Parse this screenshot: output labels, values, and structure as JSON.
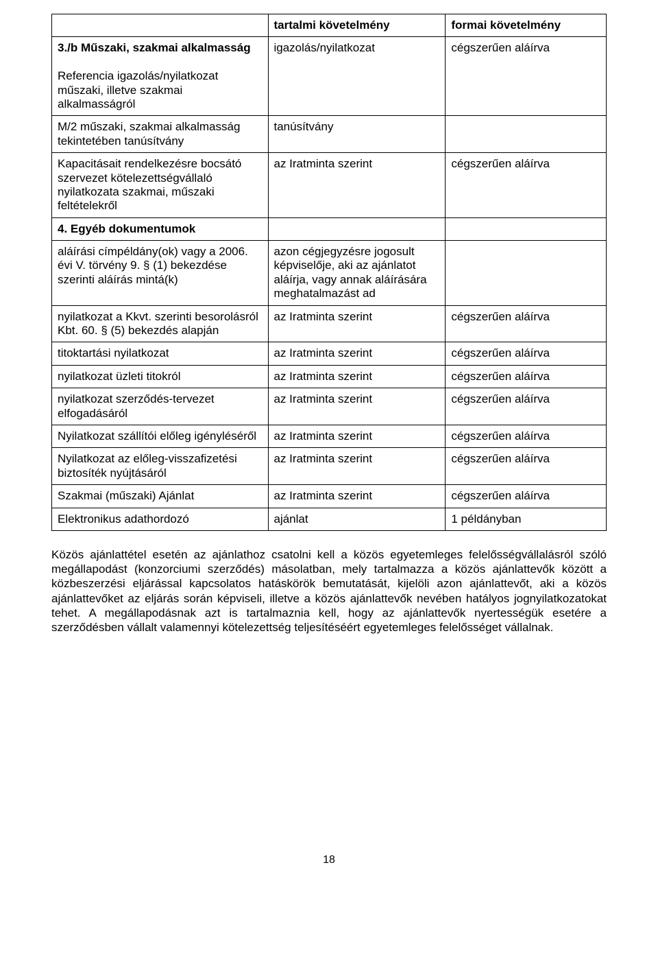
{
  "table": {
    "header": {
      "c1": "",
      "c2": "tartalmi követelmény",
      "c3": "formai követelmény"
    },
    "rows": [
      {
        "c1_bold": "3./b Műszaki, szakmai alkalmasság",
        "c1_rest": "Referencia igazolás/nyilatkozat műszaki, illetve szakmai alkalmasságról",
        "c2": "igazolás/nyilatkozat",
        "c3": "cégszerűen aláírva"
      },
      {
        "c1": "M/2 műszaki, szakmai alkalmasság tekintetében tanúsítvány",
        "c2": "tanúsítvány",
        "c3": ""
      },
      {
        "c1": "Kapacitásait rendelkezésre bocsátó szervezet kötelezettségvállaló nyilatkozata szakmai, műszaki feltételekről",
        "c2": "az Iratminta szerint",
        "c3": "cégszerűen aláírva"
      },
      {
        "c1_bold": "4. Egyéb dokumentumok",
        "c2": "",
        "c3": ""
      },
      {
        "c1": "aláírási címpéldány(ok) vagy a 2006. évi V. törvény 9. § (1) bekezdése szerinti aláírás mintá(k)",
        "c2": "azon cégjegyzésre jogosult képviselője, aki az ajánlatot aláírja, vagy annak aláírására meghatalmazást ad",
        "c3": ""
      },
      {
        "c1": "nyilatkozat a Kkvt. szerinti besorolásról Kbt. 60. § (5) bekezdés alapján",
        "c2": "az Iratminta szerint",
        "c3": "cégszerűen aláírva"
      },
      {
        "c1": "titoktartási nyilatkozat",
        "c2": "az Iratminta szerint",
        "c3": "cégszerűen aláírva"
      },
      {
        "c1": "nyilatkozat üzleti titokról",
        "c2": "az Iratminta szerint",
        "c3": "cégszerűen aláírva"
      },
      {
        "c1": "nyilatkozat szerződés-tervezet elfogadásáról",
        "c2": "az Iratminta szerint",
        "c3": "cégszerűen aláírva"
      },
      {
        "c1": "Nyilatkozat szállítói előleg igényléséről",
        "c2": "az Iratminta szerint",
        "c3": "cégszerűen aláírva"
      },
      {
        "c1": "Nyilatkozat az előleg-visszafizetési biztosíték nyújtásáról",
        "c2": "az Iratminta szerint",
        "c3": "cégszerűen aláírva"
      },
      {
        "c1": "Szakmai (műszaki) Ajánlat",
        "c2": "az Iratminta szerint",
        "c3": "cégszerűen aláírva"
      },
      {
        "c1": "Elektronikus adathordozó",
        "c2": "ajánlat",
        "c3": "1 példányban"
      }
    ]
  },
  "paragraph": "Közös ajánlattétel esetén az ajánlathoz csatolni kell a közös egyetemleges felelősségvállalásról szóló megállapodást (konzorciumi szerződés) másolatban, mely tartalmazza a közös ajánlattevők között a közbeszerzési eljárással kapcsolatos hatáskörök bemutatását, kijelöli azon ajánlattevőt, aki a közös ajánlattevőket az eljárás során képviseli, illetve a közös ajánlattevők nevében hatályos jognyilatkozatokat tehet. A megállapodásnak azt is tartalmaznia kell, hogy az ajánlattevők nyertességük esetére a szerződésben vállalt valamennyi kötelezettség teljesítéséért egyetemleges felelősséget vállalnak.",
  "page_number": "18"
}
